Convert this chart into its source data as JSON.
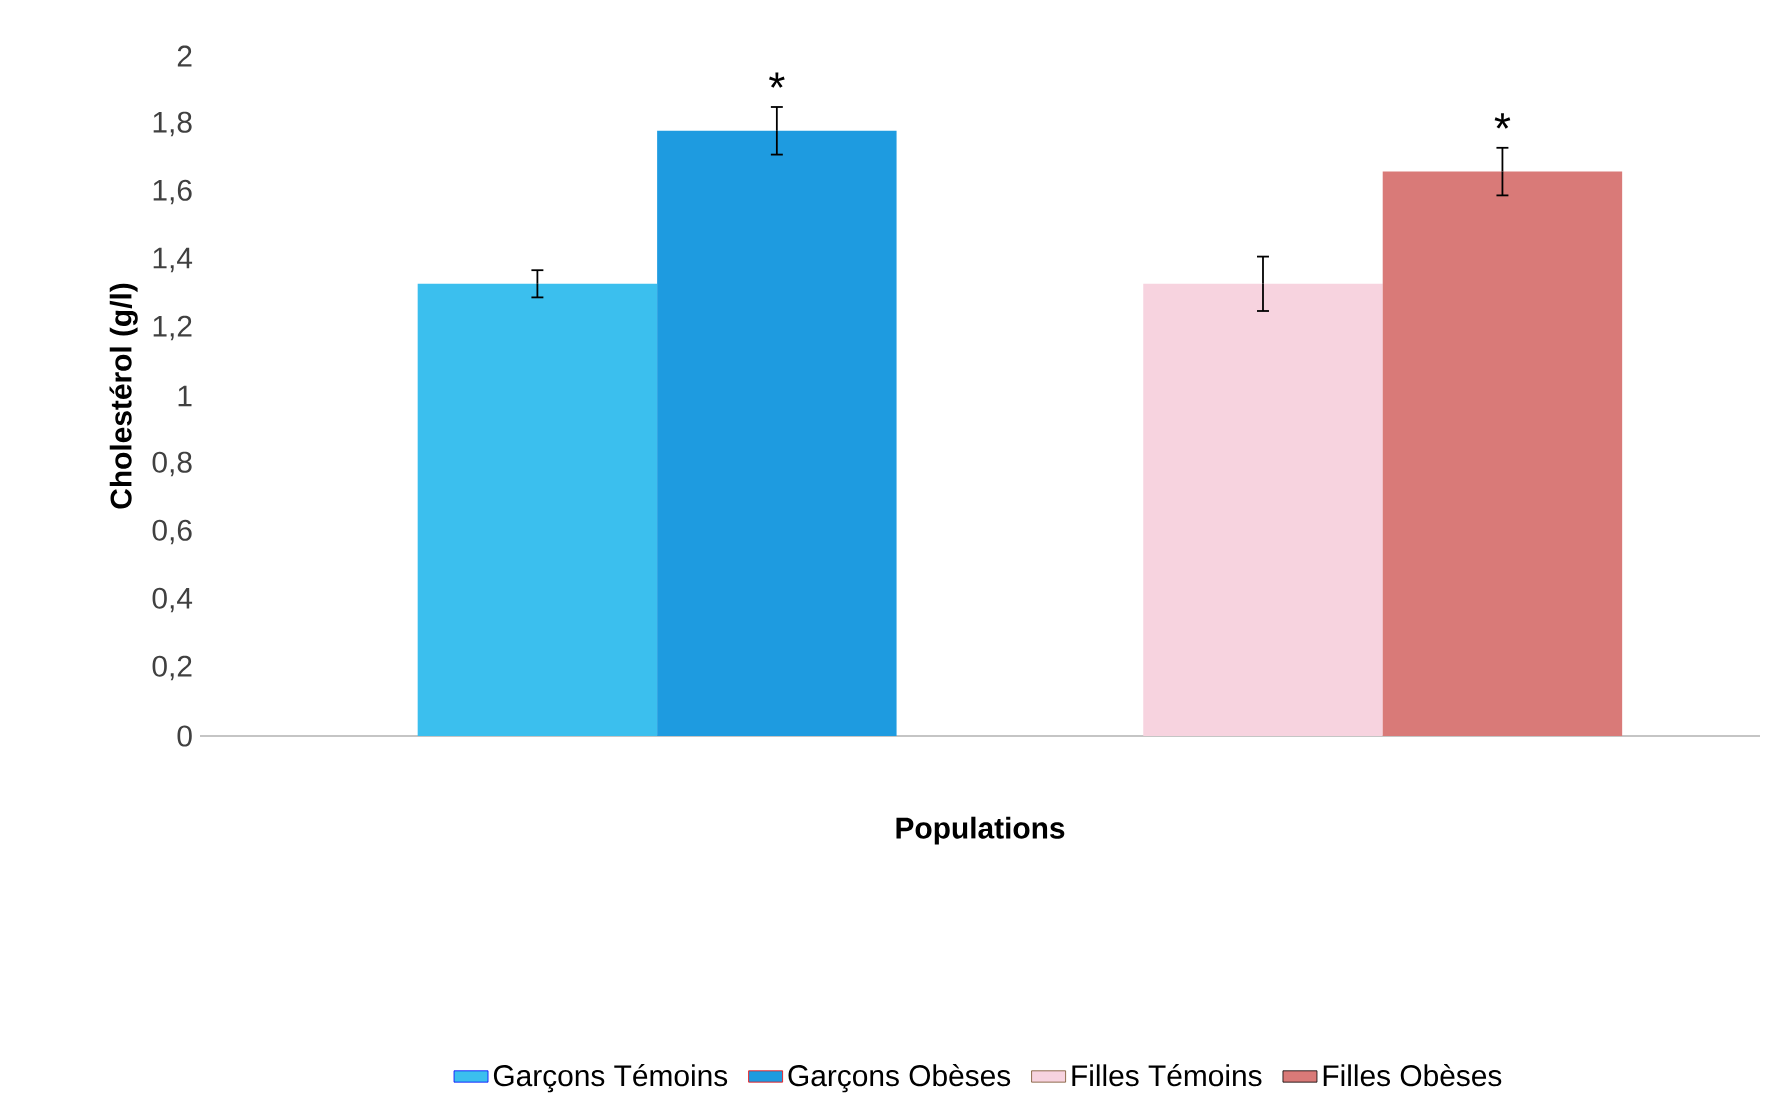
{
  "chart_data": {
    "type": "bar",
    "xlabel": "Populations",
    "ylabel": "Cholestérol   (g/l)",
    "categories": [
      null,
      null
    ],
    "series": [
      {
        "name": "Garçons Témoins",
        "color": "#3bbfee",
        "values": [
          1.33,
          null
        ],
        "errors": [
          0.04,
          null
        ]
      },
      {
        "name": "Garçons Obèses",
        "color": "#1e9be0",
        "values": [
          1.78,
          null
        ],
        "errors": [
          0.07,
          null
        ],
        "value_labels": [
          "*",
          null
        ]
      },
      {
        "name": "Filles Témoins",
        "color": "#f7d3df",
        "values": [
          null,
          1.33
        ],
        "errors": [
          null,
          0.08
        ]
      },
      {
        "name": "Filles Obèses",
        "color": "#d97a78",
        "values": [
          null,
          1.66
        ],
        "errors": [
          null,
          0.07
        ],
        "value_labels": [
          null,
          "*"
        ]
      }
    ],
    "ylim": [
      0,
      2
    ],
    "yticks": [
      0,
      {
        "value": 0.2,
        "label": "0,2"
      },
      {
        "value": 0.4,
        "label": "0,4"
      },
      {
        "value": 0.6,
        "label": "0,6"
      },
      {
        "value": 0.8,
        "label": "0,8"
      },
      1,
      {
        "value": 1.2,
        "label": "1,2"
      },
      {
        "value": 1.4,
        "label": "1,4"
      },
      {
        "value": 1.6,
        "label": "1,6"
      },
      {
        "value": 1.8,
        "label": "1,8"
      },
      2
    ],
    "legend": "bottom"
  }
}
